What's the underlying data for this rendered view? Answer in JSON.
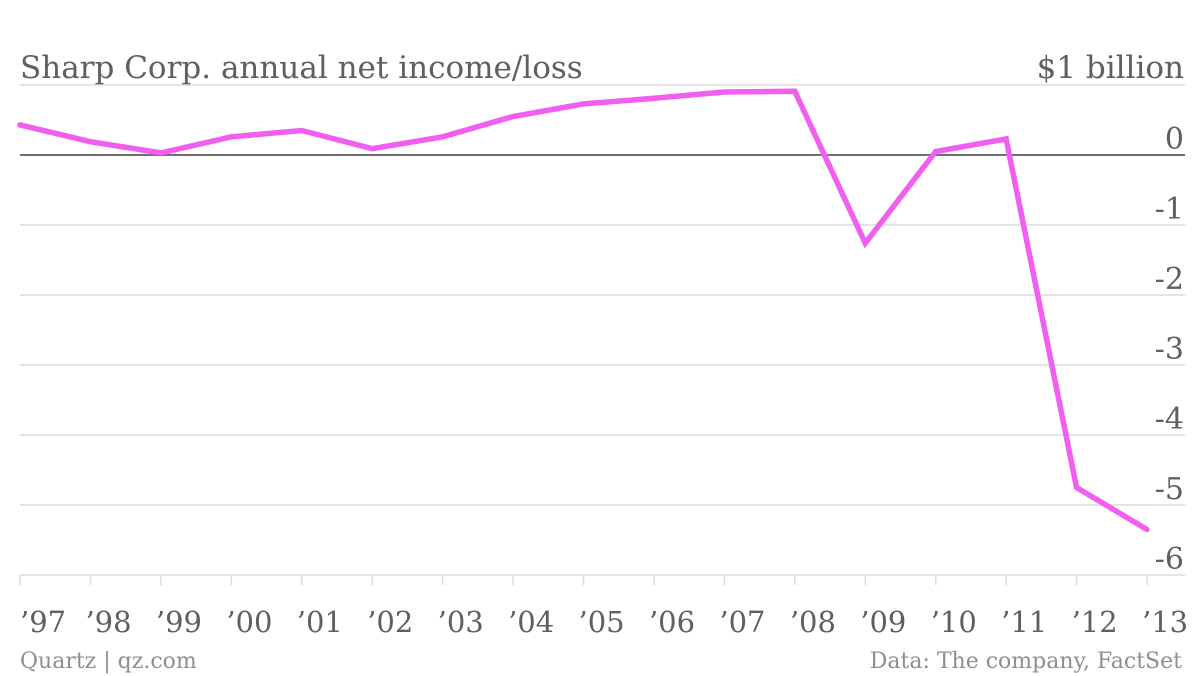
{
  "chart_data": {
    "type": "line",
    "title": "Sharp Corp. annual net income/loss",
    "unit_label": "$1 billion",
    "x": [
      "’97",
      "’98",
      "’99",
      "’00",
      "’01",
      "’02",
      "’03",
      "’04",
      "’05",
      "’06",
      "’07",
      "’08",
      "’09",
      "’10",
      "’11",
      "’12",
      "’13"
    ],
    "series": [
      {
        "values": [
          0.43,
          0.19,
          0.03,
          0.26,
          0.35,
          0.09,
          0.26,
          0.55,
          0.73,
          0.81,
          0.9,
          0.91,
          -1.26,
          0.05,
          0.23,
          -4.75,
          -5.35
        ]
      }
    ],
    "ylim": [
      -6,
      1
    ],
    "yticks": [
      "0",
      "-1",
      "-2",
      "-3",
      "-4",
      "-5",
      "-6"
    ],
    "grid": true,
    "line_color": "#f05ff0",
    "source": "Data: The company, FactSet",
    "credit": "Quartz | qz.com"
  }
}
